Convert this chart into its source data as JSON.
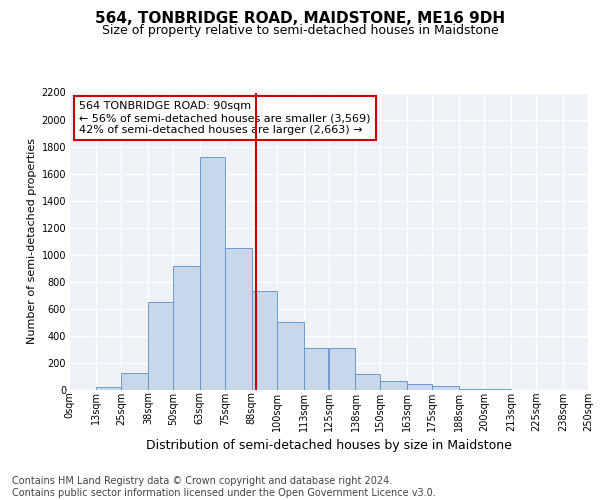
{
  "title": "564, TONBRIDGE ROAD, MAIDSTONE, ME16 9DH",
  "subtitle": "Size of property relative to semi-detached houses in Maidstone",
  "xlabel": "Distribution of semi-detached houses by size in Maidstone",
  "ylabel": "Number of semi-detached properties",
  "categories": [
    "0sqm",
    "13sqm",
    "25sqm",
    "38sqm",
    "50sqm",
    "63sqm",
    "75sqm",
    "88sqm",
    "100sqm",
    "113sqm",
    "125sqm",
    "138sqm",
    "150sqm",
    "163sqm",
    "175sqm",
    "188sqm",
    "200sqm",
    "213sqm",
    "225sqm",
    "238sqm",
    "250sqm"
  ],
  "bar_lefts": [
    0,
    13,
    25,
    38,
    50,
    63,
    75,
    88,
    100,
    113,
    125,
    138,
    150,
    163,
    175,
    188,
    200,
    213,
    225,
    238
  ],
  "bar_widths": [
    13,
    12,
    13,
    12,
    13,
    12,
    13,
    12,
    13,
    12,
    13,
    12,
    13,
    12,
    13,
    12,
    13,
    12,
    13,
    12
  ],
  "bar_heights": [
    0,
    20,
    125,
    650,
    920,
    1720,
    1050,
    730,
    500,
    310,
    310,
    120,
    65,
    45,
    30,
    10,
    5,
    2,
    1,
    0
  ],
  "bar_color": "#c8d8ea",
  "bar_edgecolor": "#5b8fc9",
  "property_line_x": 90,
  "property_line_color": "#cc0000",
  "annotation_text": "564 TONBRIDGE ROAD: 90sqm\n← 56% of semi-detached houses are smaller (3,569)\n42% of semi-detached houses are larger (2,663) →",
  "annotation_box_color": "#cc0000",
  "ylim": [
    0,
    2200
  ],
  "yticks": [
    0,
    200,
    400,
    600,
    800,
    1000,
    1200,
    1400,
    1600,
    1800,
    2000,
    2200
  ],
  "background_color": "#eef2f7",
  "grid_color": "#ffffff",
  "footer_text": "Contains HM Land Registry data © Crown copyright and database right 2024.\nContains public sector information licensed under the Open Government Licence v3.0.",
  "title_fontsize": 11,
  "subtitle_fontsize": 9,
  "ylabel_fontsize": 8,
  "xlabel_fontsize": 9,
  "tick_fontsize": 7,
  "footer_fontsize": 7,
  "ann_fontsize": 8
}
